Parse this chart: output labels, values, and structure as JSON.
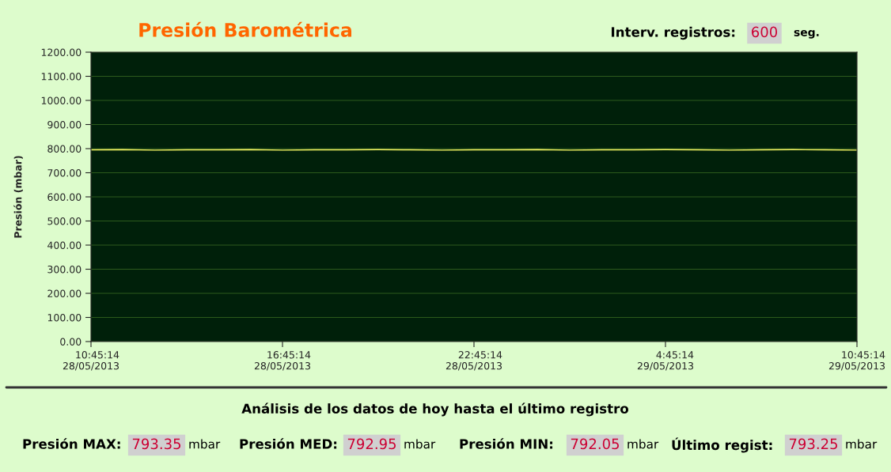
{
  "chart_data": {
    "type": "line",
    "title": "Presión Barométrica",
    "ylabel": "Presión (mbar)",
    "x": [
      "2013-05-28T10:45",
      "2013-05-28T11:45",
      "2013-05-28T12:45",
      "2013-05-28T13:45",
      "2013-05-28T14:45",
      "2013-05-28T15:45",
      "2013-05-28T16:45",
      "2013-05-28T17:45",
      "2013-05-28T18:45",
      "2013-05-28T19:45",
      "2013-05-28T20:45",
      "2013-05-28T21:45",
      "2013-05-28T22:45",
      "2013-05-28T23:45",
      "2013-05-29T00:45",
      "2013-05-29T01:45",
      "2013-05-29T02:45",
      "2013-05-29T03:45",
      "2013-05-29T04:45",
      "2013-05-29T05:45",
      "2013-05-29T06:45",
      "2013-05-29T07:45",
      "2013-05-29T08:45",
      "2013-05-29T09:45",
      "2013-05-29T10:45"
    ],
    "series": [
      {
        "color": "#ffff66",
        "values": [
          795,
          796,
          794,
          795,
          795,
          796,
          794,
          795,
          795,
          796,
          795,
          794,
          795,
          795,
          796,
          794,
          795,
          795,
          796,
          795,
          794,
          795,
          796,
          795,
          794
        ]
      }
    ],
    "xlim": [
      "2013-05-28T10:45",
      "2013-05-29T10:45"
    ],
    "xticks": [
      {
        "value": "2013-05-28T10:45",
        "label": "10:45:14\n28/05/2013"
      },
      {
        "value": "2013-05-28T16:45",
        "label": "16:45:14\n28/05/2013"
      },
      {
        "value": "2013-05-28T22:45",
        "label": "22:45:14\n28/05/2013"
      },
      {
        "value": "2013-05-29T04:45",
        "label": "4:45:14\n29/05/2013"
      },
      {
        "value": "2013-05-29T10:45",
        "label": "10:45:14\n29/05/2013"
      }
    ],
    "ylim": [
      0,
      1200
    ],
    "yticks": [
      {
        "value": 0,
        "label": "0.00"
      },
      {
        "value": 100,
        "label": "100.00"
      },
      {
        "value": 200,
        "label": "200.00"
      },
      {
        "value": 300,
        "label": "300.00"
      },
      {
        "value": 400,
        "label": "400.00"
      },
      {
        "value": 500,
        "label": "500.00"
      },
      {
        "value": 600,
        "label": "600.00"
      },
      {
        "value": 700,
        "label": "700.00"
      },
      {
        "value": 800,
        "label": "800.00"
      },
      {
        "value": 900,
        "label": "900.00"
      },
      {
        "value": 1000,
        "label": "1000.00"
      },
      {
        "value": 1100,
        "label": "1100.00"
      },
      {
        "value": 1200,
        "label": "1200.00"
      }
    ],
    "grid": "y",
    "marker": "none",
    "line_style": "solid",
    "annotations": [
      "Interv. registros:",
      "600",
      "seg.",
      "Análisis de los datos de hoy hasta el último registro",
      "Presión MAX:",
      "793.35",
      "mbar",
      "Presión MED:",
      "792.95",
      "mbar",
      "Presión MIN:",
      "792.05",
      "mbar",
      "Último regist:",
      "793.25",
      "mbar"
    ]
  }
}
